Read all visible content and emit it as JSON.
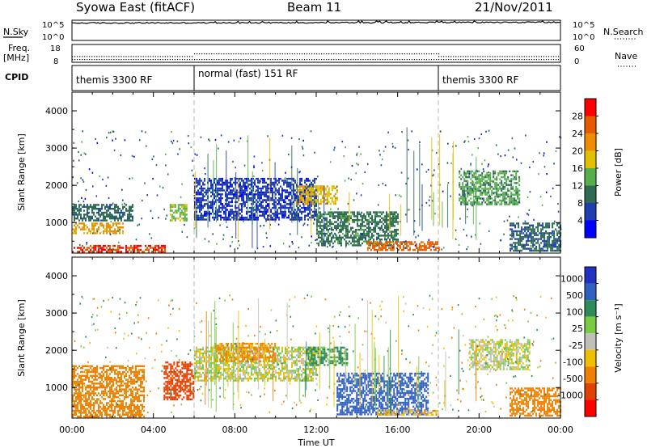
{
  "header": {
    "station": "Syowa East (fitACF)",
    "beam": "Beam 11",
    "date": "21/Nov/2011"
  },
  "noise_panel": {
    "left_label": "N.Sky",
    "right_label": "N.Search",
    "left_ticks": [
      "10^5",
      "10^0"
    ],
    "right_ticks": [
      "10^5",
      "10^0"
    ]
  },
  "freq_panel": {
    "left_label_line1": "Freq.",
    "left_label_line2": "[MHz]",
    "right_label": "Nave",
    "left_ticks": [
      "18",
      "8"
    ],
    "right_ticks": [
      "60",
      "0"
    ]
  },
  "cpid_panel": {
    "label": "CPID",
    "segments": [
      {
        "name": "themis 3300 RF",
        "start_hour": 0,
        "end_hour": 6
      },
      {
        "name": "normal (fast) 151 RF",
        "start_hour": 6,
        "end_hour": 18
      },
      {
        "name": "themis 3300 RF",
        "start_hour": 18,
        "end_hour": 24
      }
    ]
  },
  "x_axis": {
    "label": "Time UT",
    "ticks": [
      "00:00",
      "04:00",
      "08:00",
      "12:00",
      "16:00",
      "20:00",
      "00:00"
    ]
  },
  "y_axis": {
    "label": "Slant Range [km]",
    "ticks": [
      "1000",
      "2000",
      "3000",
      "4000"
    ]
  },
  "power_colorbar": {
    "label": "Power [dB]",
    "ticks": [
      "4",
      "8",
      "12",
      "16",
      "20",
      "24",
      "28"
    ],
    "colors": [
      "#0000ff",
      "#1f3fb0",
      "#2e6b52",
      "#55b04c",
      "#e0c000",
      "#f08c00",
      "#e85a00",
      "#ff0000"
    ]
  },
  "velocity_colorbar": {
    "label": "Velocity [m s⁻¹]",
    "ticks": [
      "1000",
      "500",
      "100",
      "25",
      "-25",
      "-100",
      "-500",
      "-1000"
    ],
    "colors": [
      "#2030c0",
      "#3060c0",
      "#2e8b57",
      "#77cc44",
      "#c0c0b8",
      "#f0c000",
      "#f08000",
      "#e04000",
      "#ff0000"
    ]
  },
  "chart_data": [
    {
      "type": "line",
      "name": "noise",
      "x_range_hours": [
        0,
        24
      ],
      "y_scale": "log",
      "y_range": [
        "10^0",
        "10^5"
      ],
      "summary": "Sky noise near 10^5 throughout, slightly rising towards the end of the day"
    },
    {
      "type": "scatter",
      "name": "frequency",
      "x_range_hours": [
        0,
        24
      ],
      "segments_mhz": [
        {
          "start_hour": 0,
          "end_hour": 6,
          "freq_mhz": 11.5
        },
        {
          "start_hour": 6,
          "end_hour": 18,
          "freq_mhz": 13
        },
        {
          "start_hour": 18,
          "end_hour": 24,
          "freq_mhz": 11.5
        }
      ],
      "freq_range_mhz": [
        8,
        18
      ]
    },
    {
      "type": "heatmap",
      "name": "power",
      "x_range_hours": [
        0,
        24
      ],
      "y_range_km": [
        180,
        4500
      ],
      "value_units": "dB",
      "value_range": [
        0,
        30
      ],
      "regions": [
        {
          "t0": 0.0,
          "t1": 4.6,
          "r0": 200,
          "r1": 400,
          "level": 26
        },
        {
          "t0": 0.0,
          "t1": 2.5,
          "r0": 700,
          "r1": 1000,
          "level": 20
        },
        {
          "t0": 0.0,
          "t1": 3.0,
          "r0": 1050,
          "r1": 1500,
          "level": 9
        },
        {
          "t0": 4.8,
          "t1": 5.6,
          "r0": 1050,
          "r1": 1500,
          "level": 14
        },
        {
          "t0": 6.0,
          "t1": 12.0,
          "r0": 1100,
          "r1": 2200,
          "level": 5
        },
        {
          "t0": 11.0,
          "t1": 13.0,
          "r0": 1500,
          "r1": 2000,
          "level": 18
        },
        {
          "t0": 12.0,
          "t1": 16.0,
          "r0": 400,
          "r1": 1300,
          "level": 10
        },
        {
          "t0": 14.5,
          "t1": 18.0,
          "r0": 250,
          "r1": 500,
          "level": 24
        },
        {
          "t0": 19.0,
          "t1": 22.0,
          "r0": 1500,
          "r1": 2400,
          "level": 12
        },
        {
          "t0": 21.5,
          "t1": 24.0,
          "r0": 250,
          "r1": 1000,
          "level": 8
        }
      ]
    },
    {
      "type": "heatmap",
      "name": "velocity",
      "x_range_hours": [
        0,
        24
      ],
      "y_range_km": [
        180,
        4500
      ],
      "value_units": "m s-1",
      "value_range": [
        -1000,
        1000
      ],
      "regions": [
        {
          "t0": 0.0,
          "t1": 3.5,
          "r0": 200,
          "r1": 1600,
          "level": -300
        },
        {
          "t0": 4.5,
          "t1": 6.0,
          "r0": 700,
          "r1": 1700,
          "level": -600
        },
        {
          "t0": 6.0,
          "t1": 12.0,
          "r0": 1200,
          "r1": 2100,
          "level": 0
        },
        {
          "t0": 7.0,
          "t1": 10.0,
          "r0": 1700,
          "r1": 2200,
          "level": -150
        },
        {
          "t0": 11.5,
          "t1": 13.5,
          "r0": 1600,
          "r1": 2100,
          "level": 150
        },
        {
          "t0": 13.0,
          "t1": 17.5,
          "r0": 300,
          "r1": 1400,
          "level": 700
        },
        {
          "t0": 15.0,
          "t1": 18.0,
          "r0": 250,
          "r1": 400,
          "level": -60
        },
        {
          "t0": 19.5,
          "t1": 22.5,
          "r0": 1500,
          "r1": 2300,
          "level": 0
        },
        {
          "t0": 21.5,
          "t1": 24.0,
          "r0": 250,
          "r1": 1000,
          "level": -200
        }
      ]
    }
  ]
}
